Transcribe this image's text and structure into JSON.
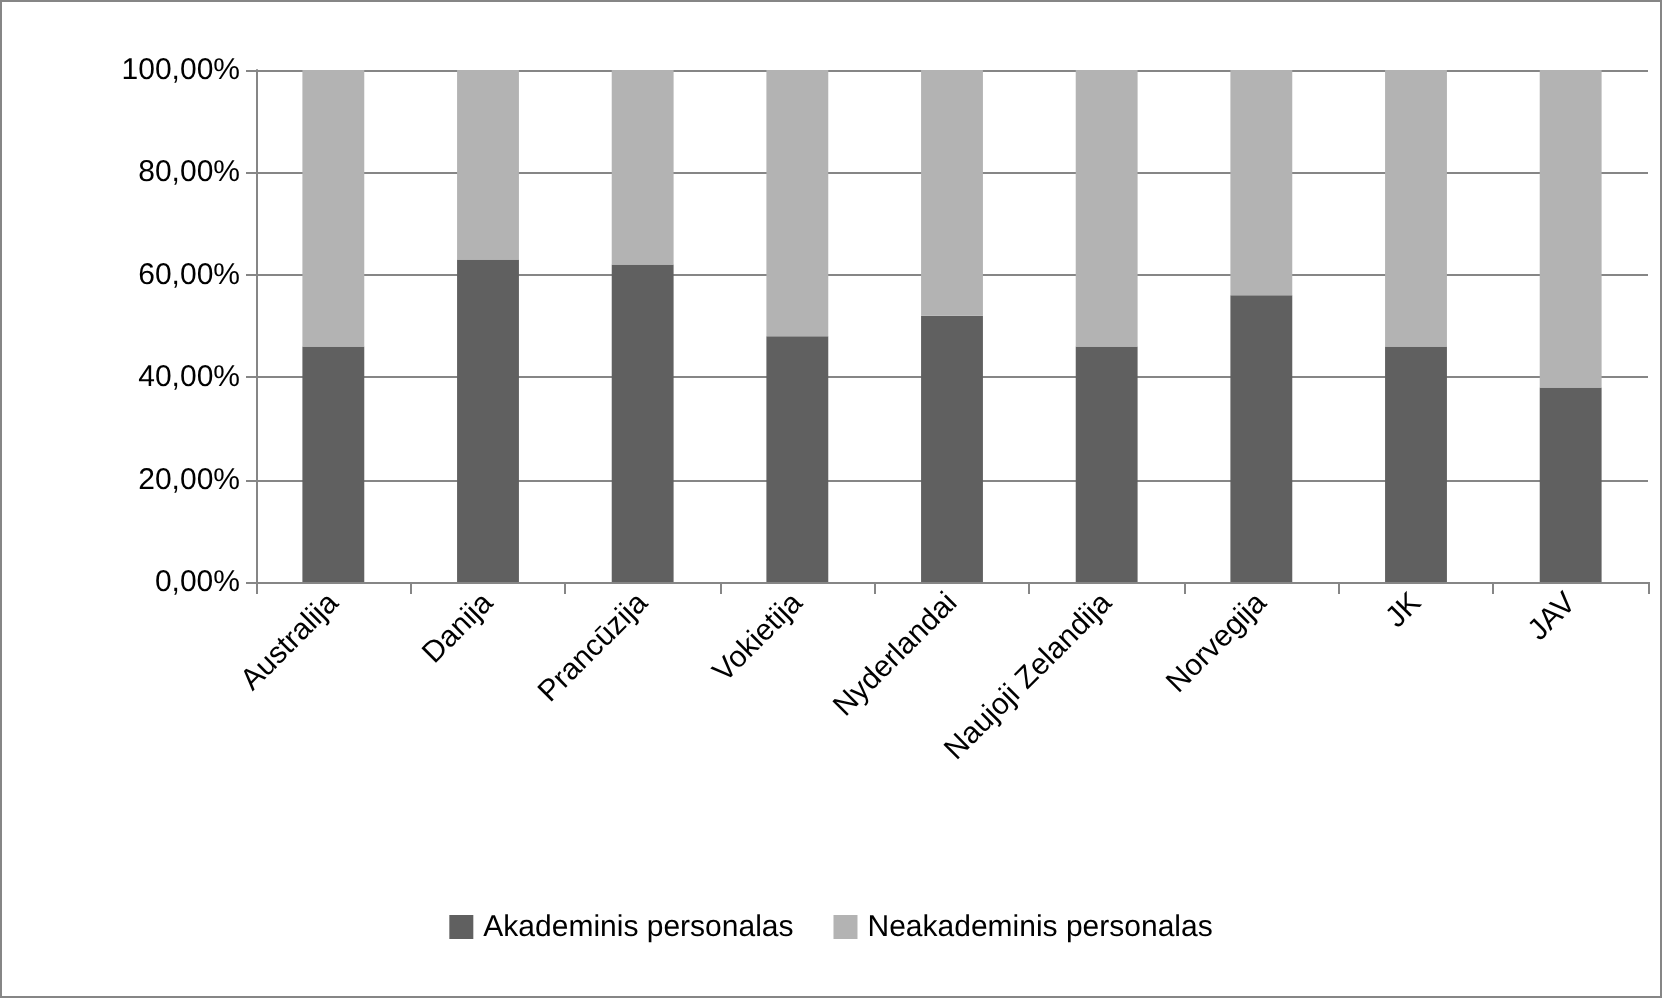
{
  "chart_data": {
    "type": "bar",
    "stacked": true,
    "categories": [
      "Australija",
      "Danija",
      "Prancūzija",
      "Vokietija",
      "Nyderlandai",
      "Naujoji Zelandija",
      "Norvegija",
      "JK",
      "JAV"
    ],
    "series": [
      {
        "name": "Akademinis personalas",
        "color": "#606060",
        "values": [
          46,
          63,
          62,
          48,
          52,
          46,
          56,
          46,
          38
        ]
      },
      {
        "name": "Neakademinis personalas",
        "color": "#b3b3b3",
        "values": [
          54,
          37,
          38,
          52,
          48,
          54,
          44,
          54,
          62
        ]
      }
    ],
    "ylim": [
      0,
      100
    ],
    "yticks": [
      {
        "value": 0,
        "label": "0,00%"
      },
      {
        "value": 20,
        "label": "20,00%"
      },
      {
        "value": 40,
        "label": "40,00%"
      },
      {
        "value": 60,
        "label": "60,00%"
      },
      {
        "value": 80,
        "label": "80,00%"
      },
      {
        "value": 100,
        "label": "100,00%"
      }
    ],
    "grid": "y",
    "legend": "bottom"
  }
}
